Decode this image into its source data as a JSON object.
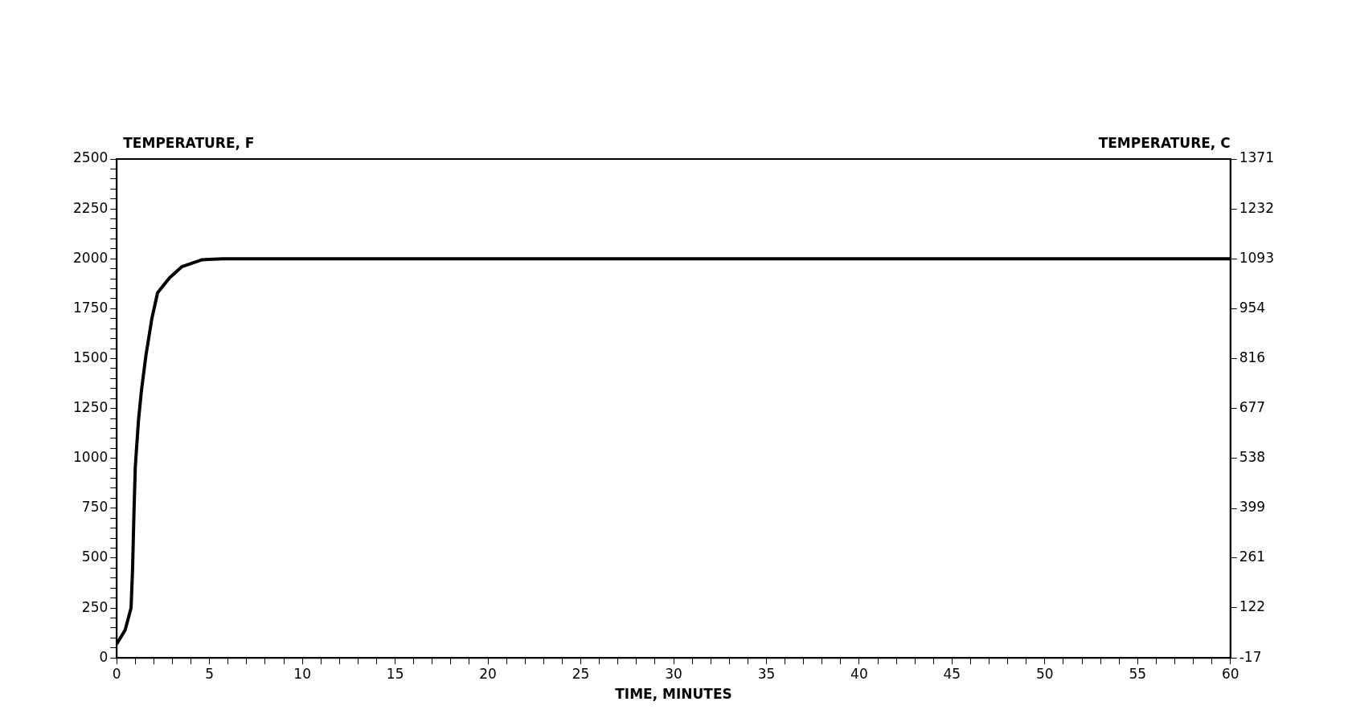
{
  "chart_data": {
    "type": "line",
    "xlabel": "TIME, MINUTES",
    "ylabel": "TEMPERATURE, F",
    "y2label": "TEMPERATURE, C",
    "series": [
      {
        "color": "#000000",
        "x": [
          0,
          0.45,
          0.77,
          0.85,
          0.93,
          1.0,
          1.17,
          1.33,
          1.57,
          1.89,
          2.2,
          2.85,
          3.5,
          4.6,
          5.7,
          10,
          20,
          30,
          40,
          50,
          60
        ],
        "values": [
          70,
          140,
          250,
          440,
          740,
          960,
          1190,
          1340,
          1515,
          1700,
          1830,
          1905,
          1960,
          1995,
          2000,
          2000,
          2000,
          2000,
          2000,
          2000,
          2000
        ]
      }
    ],
    "xlim": [
      0,
      60
    ],
    "ylim": [
      0,
      2500
    ],
    "y2lim": [
      -17,
      1371
    ],
    "xticks": [
      0,
      {
        "value": 1,
        "label": null
      },
      {
        "value": 2,
        "label": null
      },
      {
        "value": 3,
        "label": null
      },
      {
        "value": 4,
        "label": null
      },
      5,
      {
        "value": 6,
        "label": null
      },
      {
        "value": 7,
        "label": null
      },
      {
        "value": 8,
        "label": null
      },
      {
        "value": 9,
        "label": null
      },
      10,
      {
        "value": 11,
        "label": null
      },
      {
        "value": 12,
        "label": null
      },
      {
        "value": 13,
        "label": null
      },
      {
        "value": 14,
        "label": null
      },
      15,
      {
        "value": 16,
        "label": null
      },
      {
        "value": 17,
        "label": null
      },
      {
        "value": 18,
        "label": null
      },
      {
        "value": 19,
        "label": null
      },
      20,
      {
        "value": 21,
        "label": null
      },
      {
        "value": 22,
        "label": null
      },
      {
        "value": 23,
        "label": null
      },
      {
        "value": 24,
        "label": null
      },
      25,
      {
        "value": 26,
        "label": null
      },
      {
        "value": 27,
        "label": null
      },
      {
        "value": 28,
        "label": null
      },
      {
        "value": 29,
        "label": null
      },
      30,
      {
        "value": 31,
        "label": null
      },
      {
        "value": 32,
        "label": null
      },
      {
        "value": 33,
        "label": null
      },
      {
        "value": 34,
        "label": null
      },
      35,
      {
        "value": 36,
        "label": null
      },
      {
        "value": 37,
        "label": null
      },
      {
        "value": 38,
        "label": null
      },
      {
        "value": 39,
        "label": null
      },
      40,
      {
        "value": 41,
        "label": null
      },
      {
        "value": 42,
        "label": null
      },
      {
        "value": 43,
        "label": null
      },
      {
        "value": 44,
        "label": null
      },
      45,
      {
        "value": 46,
        "label": null
      },
      {
        "value": 47,
        "label": null
      },
      {
        "value": 48,
        "label": null
      },
      {
        "value": 49,
        "label": null
      },
      50,
      {
        "value": 51,
        "label": null
      },
      {
        "value": 52,
        "label": null
      },
      {
        "value": 53,
        "label": null
      },
      {
        "value": 54,
        "label": null
      },
      55,
      {
        "value": 56,
        "label": null
      },
      {
        "value": 57,
        "label": null
      },
      {
        "value": 58,
        "label": null
      },
      {
        "value": 59,
        "label": null
      },
      60
    ],
    "yticks": [
      0,
      {
        "value": 50,
        "label": null
      },
      {
        "value": 100,
        "label": null
      },
      {
        "value": 150,
        "label": null
      },
      {
        "value": 200,
        "label": null
      },
      250,
      {
        "value": 300,
        "label": null
      },
      {
        "value": 350,
        "label": null
      },
      {
        "value": 400,
        "label": null
      },
      {
        "value": 450,
        "label": null
      },
      500,
      {
        "value": 550,
        "label": null
      },
      {
        "value": 600,
        "label": null
      },
      {
        "value": 650,
        "label": null
      },
      {
        "value": 700,
        "label": null
      },
      750,
      {
        "value": 800,
        "label": null
      },
      {
        "value": 850,
        "label": null
      },
      {
        "value": 900,
        "label": null
      },
      {
        "value": 950,
        "label": null
      },
      1000,
      {
        "value": 1050,
        "label": null
      },
      {
        "value": 1100,
        "label": null
      },
      {
        "value": 1150,
        "label": null
      },
      {
        "value": 1200,
        "label": null
      },
      1250,
      {
        "value": 1300,
        "label": null
      },
      {
        "value": 1350,
        "label": null
      },
      {
        "value": 1400,
        "label": null
      },
      {
        "value": 1450,
        "label": null
      },
      1500,
      {
        "value": 1550,
        "label": null
      },
      {
        "value": 1600,
        "label": null
      },
      {
        "value": 1650,
        "label": null
      },
      {
        "value": 1700,
        "label": null
      },
      1750,
      {
        "value": 1800,
        "label": null
      },
      {
        "value": 1850,
        "label": null
      },
      {
        "value": 1900,
        "label": null
      },
      {
        "value": 1950,
        "label": null
      },
      2000,
      {
        "value": 2050,
        "label": null
      },
      {
        "value": 2100,
        "label": null
      },
      {
        "value": 2150,
        "label": null
      },
      {
        "value": 2200,
        "label": null
      },
      2250,
      {
        "value": 2300,
        "label": null
      },
      {
        "value": 2350,
        "label": null
      },
      {
        "value": 2400,
        "label": null
      },
      {
        "value": 2450,
        "label": null
      },
      2500
    ],
    "y2ticks": [
      -17,
      122,
      261,
      399,
      538,
      677,
      816,
      954,
      1093,
      1232,
      1371
    ],
    "grid": false,
    "legend": false,
    "marker": "none",
    "line_style": "solid"
  }
}
